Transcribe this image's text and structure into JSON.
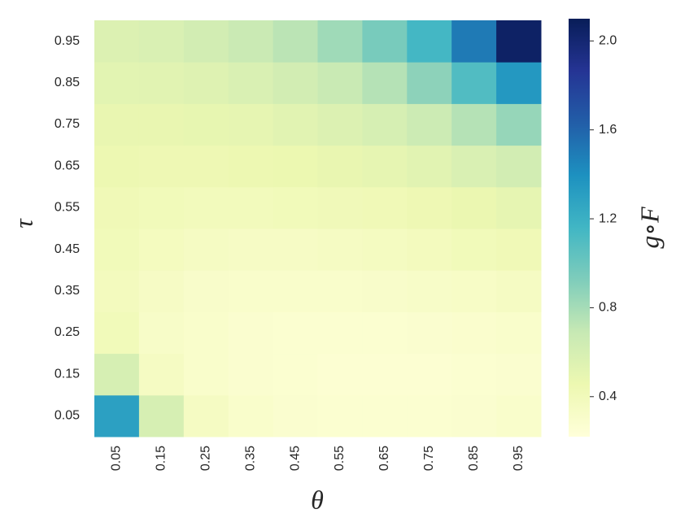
{
  "chart_data": {
    "type": "heatmap",
    "x_label": "θ",
    "y_label": "τ",
    "colorbar_label": "g∘F",
    "colormap": "YlGnBu",
    "x": [
      "0.05",
      "0.15",
      "0.25",
      "0.35",
      "0.45",
      "0.55",
      "0.65",
      "0.75",
      "0.85",
      "0.95"
    ],
    "y": [
      "0.05",
      "0.15",
      "0.25",
      "0.35",
      "0.45",
      "0.55",
      "0.65",
      "0.75",
      "0.85",
      "0.95"
    ],
    "values": [
      [
        1.3,
        0.6,
        0.35,
        0.3,
        0.28,
        0.27,
        0.27,
        0.27,
        0.28,
        0.3
      ],
      [
        0.6,
        0.35,
        0.3,
        0.28,
        0.27,
        0.26,
        0.26,
        0.26,
        0.27,
        0.28
      ],
      [
        0.4,
        0.32,
        0.3,
        0.28,
        0.27,
        0.27,
        0.27,
        0.28,
        0.29,
        0.3
      ],
      [
        0.38,
        0.34,
        0.31,
        0.3,
        0.3,
        0.3,
        0.31,
        0.32,
        0.33,
        0.35
      ],
      [
        0.4,
        0.37,
        0.35,
        0.34,
        0.34,
        0.35,
        0.36,
        0.38,
        0.4,
        0.42
      ],
      [
        0.42,
        0.4,
        0.39,
        0.39,
        0.4,
        0.41,
        0.42,
        0.44,
        0.47,
        0.5
      ],
      [
        0.45,
        0.44,
        0.44,
        0.45,
        0.46,
        0.48,
        0.5,
        0.53,
        0.58,
        0.62
      ],
      [
        0.48,
        0.48,
        0.49,
        0.5,
        0.53,
        0.56,
        0.6,
        0.66,
        0.75,
        0.85
      ],
      [
        0.52,
        0.53,
        0.55,
        0.58,
        0.62,
        0.68,
        0.75,
        0.88,
        1.1,
        1.35
      ],
      [
        0.56,
        0.58,
        0.62,
        0.67,
        0.73,
        0.82,
        0.95,
        1.15,
        1.5,
        2.05
      ]
    ],
    "clim": [
      0.22,
      2.1
    ],
    "cticks": [
      0.4,
      0.8,
      1.2,
      1.6,
      {
        "value": 2.0,
        "label": "2.0"
      }
    ]
  }
}
